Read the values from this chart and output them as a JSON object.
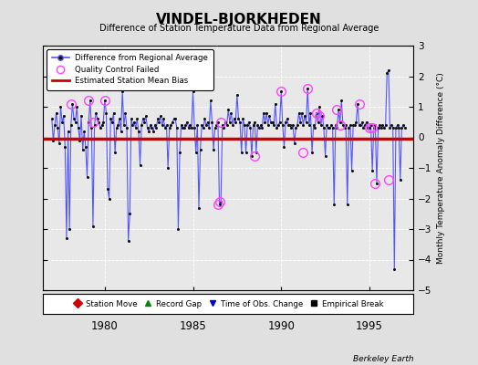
{
  "title": "VINDEL-BJORKHEDEN",
  "subtitle": "Difference of Station Temperature Data from Regional Average",
  "ylabel": "Monthly Temperature Anomaly Difference (°C)",
  "credit": "Berkeley Earth",
  "bias_line": -0.05,
  "ylim": [
    -5,
    3
  ],
  "xlim": [
    1976.5,
    1997.5
  ],
  "xticks": [
    1980,
    1985,
    1990,
    1995
  ],
  "yticks": [
    -5,
    -4,
    -3,
    -2,
    -1,
    0,
    1,
    2,
    3
  ],
  "background_color": "#e0e0e0",
  "plot_bg_color": "#e8e8e8",
  "line_color": "#5555ff",
  "bias_color": "#cc0000",
  "qc_color": "#ff44ff",
  "dot_color": "#111111",
  "main_data_x": [
    1977.0,
    1977.083,
    1977.167,
    1977.25,
    1977.333,
    1977.417,
    1977.5,
    1977.583,
    1977.667,
    1977.75,
    1977.833,
    1977.917,
    1978.0,
    1978.083,
    1978.167,
    1978.25,
    1978.333,
    1978.417,
    1978.5,
    1978.583,
    1978.667,
    1978.75,
    1978.833,
    1978.917,
    1979.0,
    1979.083,
    1979.167,
    1979.25,
    1979.333,
    1979.417,
    1979.5,
    1979.583,
    1979.667,
    1979.75,
    1979.833,
    1979.917,
    1980.0,
    1980.083,
    1980.167,
    1980.25,
    1980.333,
    1980.417,
    1980.5,
    1980.583,
    1980.667,
    1980.75,
    1980.833,
    1980.917,
    1981.0,
    1981.083,
    1981.167,
    1981.25,
    1981.333,
    1981.417,
    1981.5,
    1981.583,
    1981.667,
    1981.75,
    1981.833,
    1981.917,
    1982.0,
    1982.083,
    1982.167,
    1982.25,
    1982.333,
    1982.417,
    1982.5,
    1982.583,
    1982.667,
    1982.75,
    1982.833,
    1982.917,
    1983.0,
    1983.083,
    1983.167,
    1983.25,
    1983.333,
    1983.417,
    1983.5,
    1983.583,
    1983.667,
    1983.75,
    1983.833,
    1983.917,
    1984.0,
    1984.083,
    1984.167,
    1984.25,
    1984.333,
    1984.417,
    1984.5,
    1984.583,
    1984.667,
    1984.75,
    1984.833,
    1984.917,
    1985.0,
    1985.083,
    1985.167,
    1985.25,
    1985.333,
    1985.417,
    1985.5,
    1985.583,
    1985.667,
    1985.75,
    1985.833,
    1985.917,
    1986.0,
    1986.083,
    1986.167,
    1986.25,
    1986.333,
    1986.417,
    1986.5,
    1986.583,
    1986.667,
    1986.75,
    1986.833,
    1986.917,
    1987.0,
    1987.083,
    1987.167,
    1987.25,
    1987.333,
    1987.417,
    1987.5,
    1987.583,
    1987.667,
    1987.75,
    1987.833,
    1987.917,
    1988.0,
    1988.083,
    1988.167,
    1988.25,
    1988.333,
    1988.417,
    1988.5,
    1988.583,
    1988.667,
    1988.75,
    1988.833,
    1988.917,
    1989.0,
    1989.083,
    1989.167,
    1989.25,
    1989.333,
    1989.417,
    1989.5,
    1989.583,
    1989.667,
    1989.75,
    1989.833,
    1989.917,
    1990.0,
    1990.083,
    1990.167,
    1990.25,
    1990.333,
    1990.417,
    1990.5,
    1990.583,
    1990.667,
    1990.75,
    1990.833,
    1990.917,
    1991.0,
    1991.083,
    1991.167,
    1991.25,
    1991.333,
    1991.417,
    1991.5,
    1991.583,
    1991.667,
    1991.75,
    1991.833,
    1991.917,
    1992.0,
    1992.083,
    1992.167,
    1992.25,
    1992.333,
    1992.417,
    1992.5,
    1992.583,
    1992.667,
    1992.75,
    1992.833,
    1992.917,
    1993.0,
    1993.083,
    1993.167,
    1993.25,
    1993.333,
    1993.417,
    1993.5,
    1993.583,
    1993.667,
    1993.75,
    1993.833,
    1993.917,
    1994.0,
    1994.083,
    1994.167,
    1994.25,
    1994.333,
    1994.417,
    1994.5,
    1994.583,
    1994.667,
    1994.75,
    1994.833,
    1994.917,
    1995.0,
    1995.083,
    1995.167,
    1995.25,
    1995.333,
    1995.417,
    1995.5,
    1995.583,
    1995.667,
    1995.75,
    1995.833,
    1995.917,
    1996.0,
    1996.083,
    1996.167,
    1996.25,
    1996.333,
    1996.417,
    1996.5,
    1996.583,
    1996.667,
    1996.75,
    1996.833,
    1996.917,
    1997.0
  ],
  "main_data_y": [
    0.6,
    -0.1,
    0.4,
    0.8,
    0.3,
    -0.2,
    1.0,
    0.5,
    0.7,
    -0.3,
    -3.3,
    0.2,
    -3.0,
    0.4,
    1.1,
    0.6,
    0.5,
    1.0,
    0.3,
    -0.1,
    0.7,
    -0.4,
    0.2,
    -0.3,
    -1.3,
    0.5,
    1.2,
    0.3,
    -2.9,
    0.4,
    0.8,
    0.6,
    0.5,
    0.3,
    0.4,
    0.5,
    1.2,
    0.8,
    -1.7,
    -2.0,
    0.6,
    0.5,
    0.8,
    -0.5,
    0.3,
    0.4,
    0.6,
    0.2,
    1.5,
    0.4,
    0.8,
    0.3,
    -3.4,
    -2.5,
    0.6,
    0.4,
    0.5,
    0.3,
    0.6,
    0.2,
    -0.9,
    0.4,
    0.6,
    0.5,
    0.7,
    0.3,
    0.2,
    0.4,
    0.3,
    0.2,
    0.4,
    0.3,
    0.6,
    0.5,
    0.7,
    0.4,
    0.6,
    0.3,
    0.4,
    -1.0,
    0.3,
    0.4,
    0.5,
    0.6,
    0.6,
    0.3,
    -3.0,
    -0.5,
    0.4,
    0.3,
    0.3,
    0.4,
    0.5,
    0.3,
    0.4,
    0.3,
    1.5,
    0.3,
    -0.5,
    0.4,
    -2.3,
    -0.4,
    0.4,
    0.3,
    0.6,
    0.4,
    0.5,
    0.3,
    1.2,
    0.5,
    -0.4,
    0.3,
    0.4,
    0.5,
    -2.2,
    -2.1,
    0.4,
    0.3,
    0.5,
    0.4,
    0.9,
    0.5,
    0.8,
    0.4,
    0.6,
    0.5,
    1.4,
    0.6,
    0.5,
    -0.5,
    0.6,
    0.4,
    -0.5,
    0.4,
    0.5,
    0.3,
    -0.6,
    0.4,
    0.5,
    -0.5,
    0.4,
    0.3,
    0.4,
    0.3,
    0.8,
    0.5,
    0.8,
    0.4,
    0.7,
    0.5,
    0.5,
    0.4,
    1.1,
    0.3,
    0.4,
    0.5,
    1.5,
    0.4,
    -0.3,
    0.5,
    0.6,
    0.4,
    0.4,
    0.3,
    0.4,
    -0.2,
    0.3,
    0.4,
    0.8,
    0.5,
    0.8,
    0.4,
    0.7,
    0.5,
    1.6,
    0.4,
    0.8,
    -0.5,
    0.4,
    0.3,
    0.8,
    0.5,
    1.0,
    0.4,
    0.7,
    0.3,
    -0.6,
    0.4,
    0.3,
    0.3,
    0.4,
    0.3,
    -2.2,
    0.4,
    0.3,
    0.9,
    0.5,
    1.2,
    0.4,
    0.3,
    0.4,
    -2.2,
    0.3,
    0.4,
    -1.1,
    0.4,
    0.4,
    0.5,
    1.1,
    0.4,
    0.4,
    0.5,
    0.3,
    0.4,
    0.5,
    0.3,
    0.3,
    0.4,
    -1.1,
    0.3,
    0.4,
    -1.5,
    0.3,
    0.4,
    0.3,
    0.4,
    0.3,
    0.4,
    2.1,
    2.2,
    0.3,
    0.4,
    0.3,
    -4.3,
    0.3,
    0.4,
    0.3,
    -1.4,
    0.3,
    0.4,
    0.3
  ],
  "qc_failed_x": [
    1978.083,
    1979.083,
    1979.333,
    1980.0,
    1986.417,
    1986.5,
    1986.583,
    1988.5,
    1990.0,
    1991.5,
    1991.25,
    1992.0,
    1992.167,
    1993.167,
    1993.333,
    1994.417,
    1995.0,
    1995.167,
    1995.333,
    1996.083
  ],
  "qc_failed_y": [
    1.1,
    1.2,
    0.5,
    1.2,
    -2.2,
    -2.1,
    0.5,
    -0.6,
    1.5,
    1.6,
    -0.5,
    0.8,
    0.7,
    0.9,
    0.4,
    1.1,
    0.3,
    0.3,
    -1.5,
    -1.4
  ]
}
